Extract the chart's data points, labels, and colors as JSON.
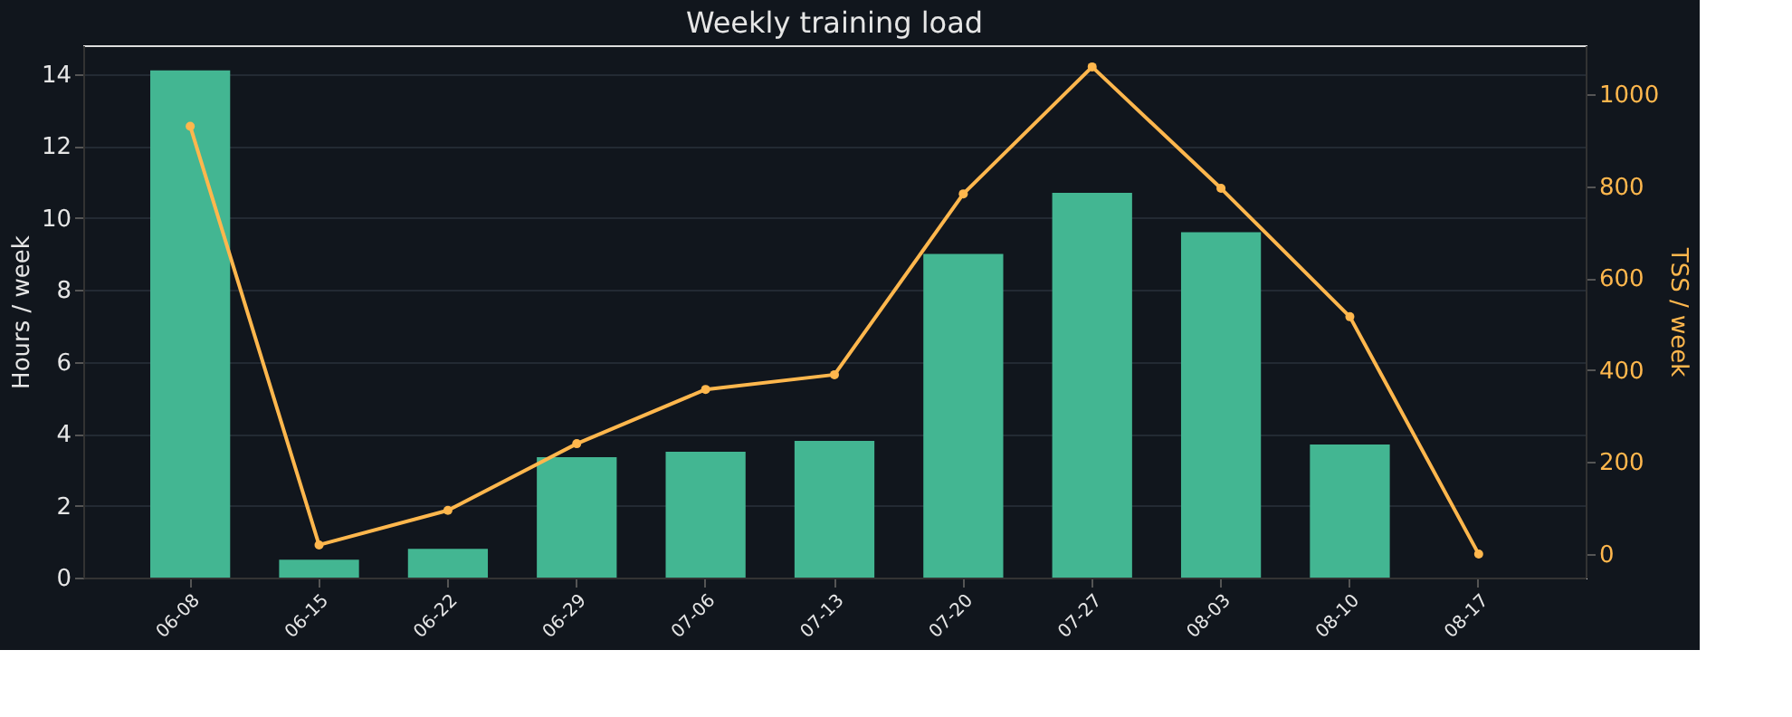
{
  "chart_data": {
    "type": "bar",
    "title": "Weekly training load",
    "categories": [
      "06-08",
      "06-15",
      "06-22",
      "06-29",
      "07-06",
      "07-13",
      "07-20",
      "07-27",
      "08-03",
      "08-10",
      "08-17"
    ],
    "series": [
      {
        "name": null,
        "color": "#43b692",
        "values": [
          14.1,
          0.5,
          0.8,
          3.35,
          3.5,
          3.8,
          9.0,
          10.7,
          9.6,
          3.7,
          0
        ]
      },
      {
        "name": null,
        "type": "line",
        "axis": "y2",
        "color": "#ffb74d",
        "marker": "circle",
        "values": [
          930,
          20,
          95,
          240,
          358,
          390,
          783,
          1059,
          795,
          516,
          0
        ]
      }
    ],
    "ylabel": "Hours / week",
    "y2label": "TSS / week",
    "ylim": [
      0,
      14.8
    ],
    "yticks": [
      0,
      2,
      4,
      6,
      8,
      10,
      12,
      14
    ],
    "y2lim": [
      -51,
      1106
    ],
    "y2ticks": [
      0,
      200,
      400,
      600,
      800,
      1000
    ],
    "grid": "y"
  }
}
